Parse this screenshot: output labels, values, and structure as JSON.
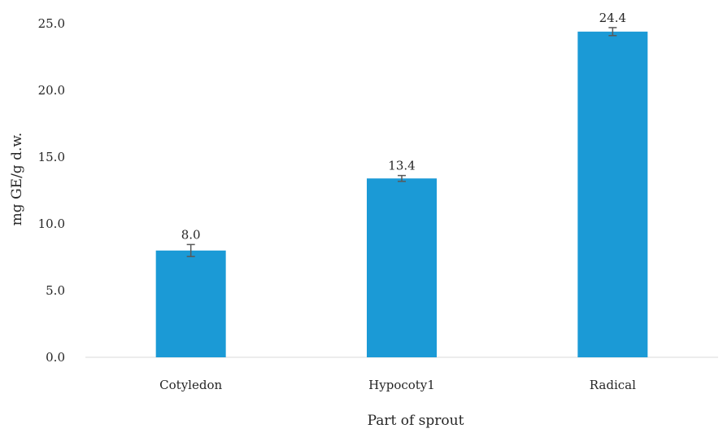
{
  "chart_data": {
    "type": "bar",
    "title": "",
    "xlabel": "Part of sprout",
    "ylabel": "mg GE/g d.w.",
    "categories": [
      "Cotyledon",
      "Hypocoty1",
      "Radical"
    ],
    "values": [
      8.0,
      13.4,
      24.4
    ],
    "value_labels": [
      "8.0",
      "13.4",
      "24.4"
    ],
    "error": [
      0.45,
      0.22,
      0.3
    ],
    "ylim": [
      0,
      25
    ],
    "yticks": [
      0,
      5,
      10,
      15,
      20,
      25
    ],
    "ytick_labels": [
      "0.0",
      "5.0",
      "10.0",
      "15.0",
      "20.0",
      "25.0"
    ],
    "grid": false,
    "legend": "none",
    "bar_color": "#1b9ad6",
    "error_bar_color": "#595959",
    "axis_color": "#d9d9d9"
  }
}
